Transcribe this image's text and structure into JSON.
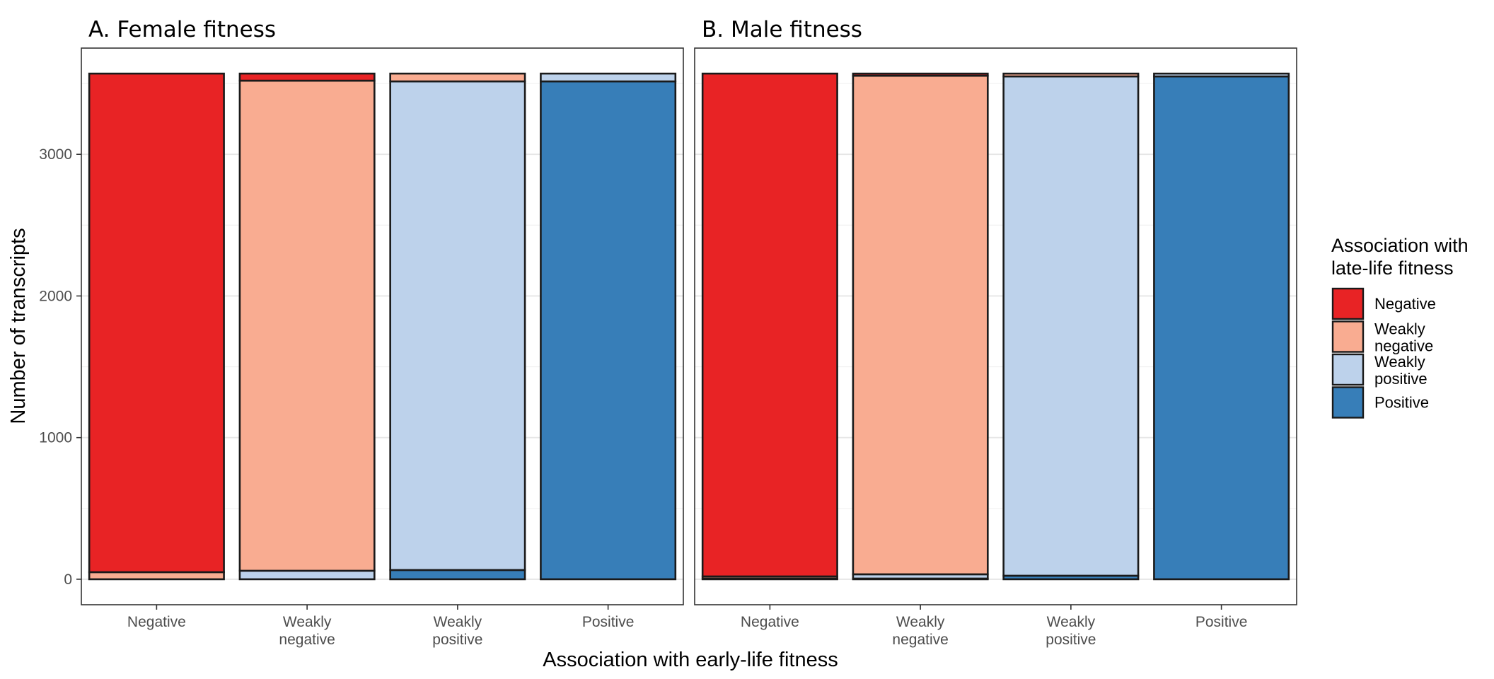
{
  "chart_data": {
    "type": "bar",
    "stacked": true,
    "xlabel": "Association with early-life fitness",
    "ylabel": "Number of transcripts",
    "ylim": [
      -180,
      3750
    ],
    "yticks": [
      0,
      1000,
      2000,
      3000
    ],
    "grid": true,
    "categories": [
      "Negative",
      "Weakly negative",
      "Weakly positive",
      "Positive"
    ],
    "category_lines": [
      [
        "Negative"
      ],
      [
        "Weakly",
        "negative"
      ],
      [
        "Weakly",
        "positive"
      ],
      [
        "Positive"
      ]
    ],
    "legend": {
      "title_lines": [
        "Association with",
        "late-life fitness"
      ],
      "placement": "right",
      "entries": [
        {
          "key": "Negative",
          "lines": [
            "Negative"
          ],
          "color": "#E82325"
        },
        {
          "key": "Weakly negative",
          "lines": [
            "Weakly",
            "negative"
          ],
          "color": "#F9AC91"
        },
        {
          "key": "Weakly positive",
          "lines": [
            "Weakly",
            "positive"
          ],
          "color": "#BDD2EB"
        },
        {
          "key": "Positive",
          "lines": [
            "Positive"
          ],
          "color": "#377EB8"
        }
      ]
    },
    "panels": [
      {
        "title": "A. Female fitness",
        "stack_order_bottom_to_top": [
          "Positive",
          "Weakly positive",
          "Weakly negative",
          "Negative"
        ],
        "series": [
          {
            "name": "Negative",
            "values": [
              3520,
              50,
              0,
              0
            ]
          },
          {
            "name": "Weakly negative",
            "values": [
              50,
              3460,
              55,
              0
            ]
          },
          {
            "name": "Weakly positive",
            "values": [
              0,
              60,
              3450,
              55
            ]
          },
          {
            "name": "Positive",
            "values": [
              0,
              0,
              65,
              3515
            ]
          }
        ]
      },
      {
        "title": "B. Male fitness",
        "stack_order_bottom_to_top": [
          "Positive",
          "Weakly positive",
          "Weakly negative",
          "Negative"
        ],
        "series": [
          {
            "name": "Negative",
            "values": [
              3550,
              15,
              0,
              0
            ]
          },
          {
            "name": "Weakly negative",
            "values": [
              15,
              3520,
              20,
              0
            ]
          },
          {
            "name": "Weakly positive",
            "values": [
              5,
              30,
              3525,
              20
            ]
          },
          {
            "name": "Positive",
            "values": [
              0,
              5,
              25,
              3550
            ]
          }
        ]
      }
    ]
  }
}
